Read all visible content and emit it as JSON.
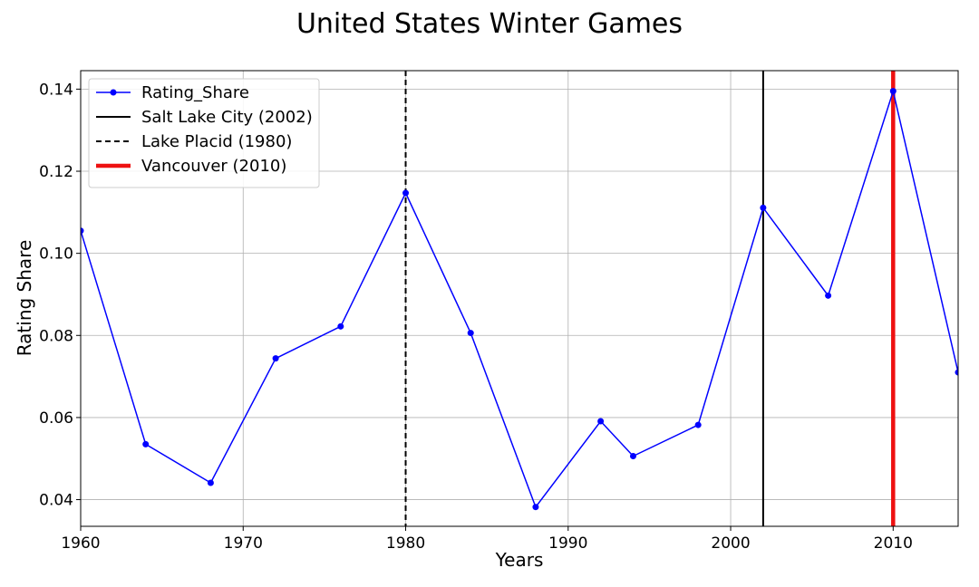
{
  "chart_data": {
    "type": "line",
    "title": "United States Winter Games",
    "xlabel": "Years",
    "ylabel": "Rating Share",
    "xlim": [
      1960,
      2014
    ],
    "ylim": [
      0.0335,
      0.1445
    ],
    "xticks": [
      1960,
      1970,
      1980,
      1990,
      2000,
      2010
    ],
    "yticks": [
      0.04,
      0.06,
      0.08,
      0.1,
      0.12,
      0.14
    ],
    "ytick_labels": [
      "0.04",
      "0.06",
      "0.08",
      "0.10",
      "0.12",
      "0.14"
    ],
    "grid": true,
    "legend_position": "top-left",
    "series": [
      {
        "name": "Rating_Share",
        "color": "#0000ff",
        "marker": "circle",
        "x": [
          1960,
          1964,
          1968,
          1972,
          1976,
          1980,
          1984,
          1988,
          1992,
          1994,
          1998,
          2002,
          2006,
          2010,
          2014
        ],
        "y": [
          0.1055,
          0.0535,
          0.0441,
          0.0744,
          0.0822,
          0.1147,
          0.0806,
          0.0382,
          0.0591,
          0.0506,
          0.0582,
          0.1111,
          0.0897,
          0.1395,
          0.071
        ]
      }
    ],
    "vlines": [
      {
        "name": "Salt Lake City (2002)",
        "x": 2002,
        "color": "#000000",
        "style": "solid"
      },
      {
        "name": "Lake Placid (1980)",
        "x": 1980,
        "color": "#000000",
        "style": "dashed"
      },
      {
        "name": "Vancouver (2010)",
        "x": 2010,
        "color": "#ee1111",
        "style": "thick"
      }
    ]
  }
}
